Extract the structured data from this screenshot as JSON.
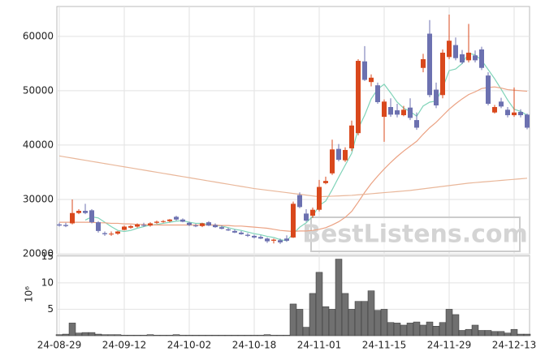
{
  "chart_data": [
    {
      "type": "candlestick",
      "up_color": "#d9481c",
      "down_color": "#6c71b0",
      "grid": true,
      "watermark": "BestListens.com",
      "ylim": [
        20000,
        65500
      ],
      "yticks": [
        20000,
        30000,
        40000,
        50000,
        60000
      ],
      "open": [
        25400,
        25300,
        25600,
        27500,
        27900,
        28000,
        25800,
        23800,
        23600,
        23700,
        24400,
        24800,
        25000,
        25300,
        25200,
        25700,
        25900,
        26000,
        26800,
        26300,
        25700,
        25200,
        25100,
        25800,
        25300,
        24900,
        24500,
        24200,
        23900,
        23500,
        23300,
        23100,
        22800,
        22400,
        22500,
        22800,
        23000,
        30800,
        27400,
        27000,
        28100,
        33000,
        34800,
        39300,
        37200,
        39400,
        42200,
        55400,
        51600,
        51000,
        45200,
        47000,
        46400,
        45500,
        46900,
        44600,
        54200,
        60500,
        50200,
        49200,
        56200,
        58400,
        56700,
        55600,
        56500,
        57600,
        52800,
        46000,
        48000,
        46500,
        45500,
        46100,
        45600
      ],
      "high": [
        25700,
        25700,
        30000,
        28200,
        29200,
        28200,
        26000,
        24100,
        24100,
        24200,
        25200,
        25300,
        25600,
        25700,
        25800,
        26100,
        26200,
        26400,
        27000,
        26500,
        25900,
        25500,
        25700,
        26000,
        25600,
        25200,
        24800,
        24500,
        24200,
        23800,
        23500,
        23400,
        23000,
        22800,
        22800,
        23400,
        29600,
        31300,
        28200,
        28500,
        33600,
        34200,
        41000,
        40200,
        39600,
        44500,
        55800,
        58200,
        53000,
        51500,
        48400,
        48600,
        47600,
        47200,
        48600,
        46000,
        56800,
        63000,
        51500,
        57600,
        64000,
        59800,
        57500,
        62300,
        57400,
        58100,
        53400,
        47400,
        48700,
        47000,
        50600,
        46600,
        45800
      ],
      "low": [
        25000,
        24900,
        25400,
        27300,
        27300,
        25600,
        23900,
        23300,
        23300,
        23500,
        24300,
        24600,
        24800,
        25000,
        25000,
        25500,
        25700,
        25800,
        26100,
        25800,
        25100,
        24900,
        24900,
        25100,
        24800,
        24500,
        24200,
        23800,
        23500,
        23100,
        22800,
        22700,
        22000,
        21900,
        21800,
        22200,
        22900,
        28400,
        25900,
        26600,
        27800,
        32800,
        34500,
        37000,
        36900,
        38900,
        41800,
        51800,
        50800,
        47600,
        40600,
        45200,
        45100,
        45300,
        44600,
        42800,
        53400,
        48800,
        46800,
        48600,
        55800,
        55600,
        54900,
        55200,
        55200,
        53800,
        47300,
        45800,
        46800,
        45100,
        45200,
        45100,
        42900
      ],
      "close": [
        25200,
        25100,
        27500,
        27900,
        27500,
        25800,
        24200,
        23600,
        23700,
        24100,
        25000,
        25100,
        25400,
        25200,
        25600,
        25900,
        26000,
        26300,
        26300,
        25900,
        25300,
        25100,
        25600,
        25200,
        24900,
        24600,
        24300,
        23900,
        23600,
        23300,
        23000,
        22800,
        22300,
        22600,
        22100,
        22400,
        29200,
        28600,
        26100,
        28100,
        32300,
        33400,
        39200,
        37300,
        39100,
        43600,
        55500,
        52000,
        52400,
        47900,
        48000,
        45600,
        45600,
        46500,
        45000,
        43200,
        55800,
        49200,
        47300,
        57000,
        59200,
        56000,
        55200,
        57000,
        55600,
        54200,
        47600,
        47000,
        47100,
        45500,
        46000,
        45500,
        43200
      ],
      "series": [
        {
          "color": "#7fd3b8",
          "values": [
            null,
            null,
            null,
            null,
            26200,
            26800,
            26600,
            25800,
            25000,
            24300,
            24100,
            24300,
            24700,
            25000,
            25300,
            25400,
            25600,
            25800,
            26000,
            26100,
            25800,
            25600,
            25600,
            25400,
            25200,
            25100,
            24800,
            24500,
            24300,
            24000,
            23700,
            23500,
            23200,
            23000,
            22600,
            22400,
            23700,
            24900,
            25700,
            26900,
            28900,
            29700,
            31800,
            34100,
            36300,
            38500,
            43000,
            45500,
            48500,
            50300,
            51200,
            49600,
            47900,
            46800,
            46200,
            45300,
            47200,
            47900,
            48100,
            50500,
            53700,
            54000,
            55000,
            56900,
            56600,
            55600,
            53900,
            52200,
            50300,
            48300,
            46600,
            46200,
            45500
          ]
        },
        {
          "color": "#eba283",
          "values": [
            25800,
            25800,
            25800,
            25800,
            25800,
            25800,
            25700,
            25700,
            25600,
            25600,
            25500,
            25500,
            25400,
            25400,
            25300,
            25300,
            25300,
            25300,
            25300,
            25300,
            25300,
            25300,
            25300,
            25300,
            25300,
            25200,
            25200,
            25100,
            25100,
            25000,
            24900,
            24800,
            24700,
            24500,
            24300,
            24200,
            24100,
            24200,
            24200,
            24300,
            24500,
            24800,
            25300,
            25900,
            26700,
            27800,
            29500,
            31300,
            32900,
            34300,
            35600,
            36800,
            37900,
            38900,
            39800,
            40700,
            42000,
            43200,
            44200,
            45400,
            46600,
            47600,
            48500,
            49300,
            49800,
            50400,
            50600,
            50700,
            50500,
            50200,
            50100,
            50000,
            49900
          ]
        },
        {
          "color": "#e9b79a",
          "values": [
            38000,
            37800,
            37600,
            37400,
            37200,
            37000,
            36800,
            36600,
            36400,
            36200,
            36000,
            35800,
            35600,
            35400,
            35200,
            35000,
            34800,
            34600,
            34400,
            34200,
            34000,
            33800,
            33600,
            33400,
            33200,
            33000,
            32800,
            32600,
            32400,
            32200,
            32000,
            31850,
            31700,
            31550,
            31400,
            31250,
            31100,
            30950,
            30800,
            30650,
            30500,
            30550,
            30600,
            30650,
            30700,
            30750,
            30850,
            30950,
            31050,
            31150,
            31250,
            31350,
            31450,
            31550,
            31650,
            31800,
            31950,
            32100,
            32250,
            32400,
            32550,
            32700,
            32850,
            33000,
            33100,
            33200,
            33300,
            33400,
            33500,
            33600,
            33700,
            33800,
            33900
          ]
        }
      ]
    },
    {
      "type": "bar",
      "color": "#707070",
      "y_label": "10⁶",
      "grid": true,
      "ylim": [
        0,
        15.2
      ],
      "yticks": [
        5,
        10,
        15
      ],
      "categories": [
        "24-08-29",
        null,
        null,
        null,
        null,
        null,
        null,
        null,
        null,
        null,
        "24-09-12",
        null,
        null,
        null,
        null,
        null,
        null,
        null,
        null,
        null,
        "24-10-02",
        null,
        null,
        null,
        null,
        null,
        null,
        null,
        null,
        null,
        "24-10-18",
        null,
        null,
        null,
        null,
        null,
        null,
        null,
        null,
        null,
        "24-11-01",
        null,
        null,
        null,
        null,
        null,
        null,
        null,
        null,
        null,
        "24-11-15",
        null,
        null,
        null,
        null,
        null,
        null,
        null,
        null,
        null,
        "24-11-29",
        null,
        null,
        null,
        null,
        null,
        null,
        null,
        null,
        null,
        "24-12-13",
        null,
        null
      ],
      "values": [
        0.2,
        0.3,
        2.4,
        0.5,
        0.6,
        0.6,
        0.3,
        0.2,
        0.2,
        0.2,
        0.1,
        0.1,
        0.1,
        0.1,
        0.2,
        0.1,
        0.1,
        0.1,
        0.2,
        0.1,
        0.1,
        0.1,
        0.1,
        0.1,
        0.1,
        0.1,
        0.1,
        0.1,
        0.1,
        0.1,
        0.1,
        0.1,
        0.2,
        0.1,
        0.1,
        0.1,
        6.0,
        5.0,
        1.6,
        8.0,
        12.0,
        5.5,
        5.0,
        14.5,
        8.0,
        5.0,
        6.5,
        6.5,
        8.5,
        4.8,
        5.0,
        2.5,
        2.4,
        2.0,
        2.4,
        2.6,
        2.0,
        2.6,
        1.8,
        2.5,
        5.0,
        4.0,
        1.0,
        1.2,
        2.0,
        1.0,
        1.0,
        0.8,
        0.8,
        0.5,
        1.2,
        0.3,
        0.3
      ]
    }
  ]
}
